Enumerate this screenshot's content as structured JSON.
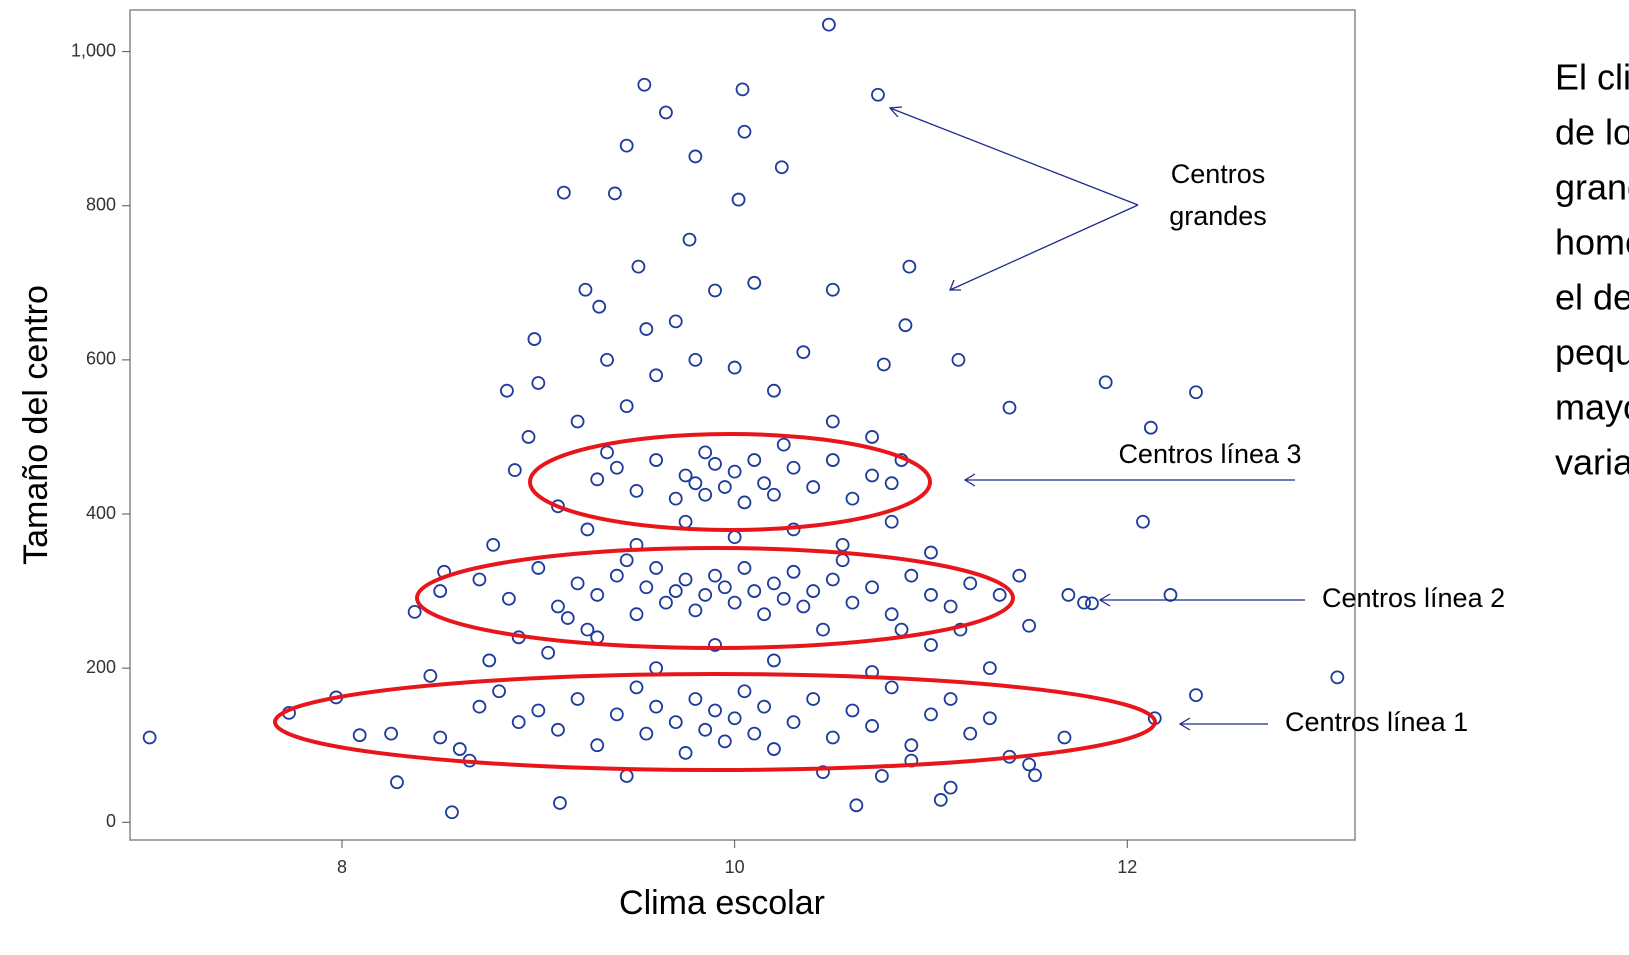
{
  "chart_data": {
    "type": "scatter",
    "x_label": "Clima escolar",
    "y_label": "Tamaño del centro",
    "color": "#1e3c9c",
    "xlim": [
      6.92,
      13.16
    ],
    "ylim": [
      -23,
      1054
    ],
    "xticks": [
      8,
      10,
      12
    ],
    "yticks": [
      0,
      200,
      400,
      600,
      800,
      {
        "value": 1000,
        "label": "1,000"
      }
    ],
    "annotations": [
      "Centros",
      "grandes",
      "Centros línea 3",
      "Centros línea 2",
      "Centros línea 1"
    ],
    "side_text": [
      "El clima",
      "de los c",
      "grandes",
      "homogé",
      "el de los",
      "pequeñ",
      "mayor",
      "variabili"
    ],
    "x": [
      7.02,
      10.48,
      10.73,
      9.54,
      10.04,
      13.07,
      12.35,
      12.08,
      11.89,
      12.12,
      11.4,
      11.14,
      10.89,
      10.24,
      10.05,
      9.13,
      9.39,
      9.65,
      9.77,
      8.28,
      8.56,
      9.11,
      10.62,
      11.05,
      11.53,
      11.68,
      11.82,
      12.22,
      12.35,
      12.14,
      7.73,
      7.97,
      8.09,
      8.37,
      8.52,
      8.77,
      8.84,
      8.88,
      8.98,
      9.24,
      9.31,
      9.51,
      9.45,
      9.8,
      10.02,
      10.5,
      10.76,
      10.87,
      9.3,
      9.4,
      9.5,
      9.6,
      9.7,
      9.75,
      9.8,
      9.85,
      9.9,
      9.95,
      10.0,
      10.05,
      10.1,
      10.15,
      10.2,
      10.3,
      10.4,
      10.5,
      10.6,
      10.7,
      10.8,
      9.1,
      10.85,
      9.35,
      10.25,
      9.85,
      9.2,
      9.45,
      9.6,
      9.8,
      10.0,
      10.2,
      10.35,
      10.5,
      10.7,
      9.55,
      9.7,
      9.9,
      10.1,
      9.35,
      9.0,
      8.95,
      9.25,
      9.5,
      9.75,
      10.0,
      10.3,
      10.55,
      10.8,
      11.0,
      9.05,
      9.3,
      9.6,
      9.9,
      10.2,
      10.45,
      10.7,
      11.0,
      11.3,
      8.75,
      11.15,
      8.9,
      8.5,
      8.7,
      8.85,
      9.0,
      9.1,
      9.2,
      9.3,
      9.4,
      9.5,
      9.55,
      9.6,
      9.65,
      9.7,
      9.75,
      9.8,
      9.85,
      9.9,
      9.95,
      10.0,
      10.05,
      10.1,
      10.15,
      10.2,
      10.25,
      10.3,
      10.35,
      10.4,
      10.5,
      10.6,
      10.7,
      10.8,
      10.9,
      11.0,
      11.1,
      11.2,
      11.35,
      11.5,
      11.45,
      11.7,
      11.78,
      9.15,
      9.45,
      10.55,
      10.85,
      9.25,
      8.5,
      8.6,
      8.7,
      8.8,
      8.9,
      9.0,
      9.1,
      9.2,
      9.3,
      9.4,
      9.5,
      9.55,
      9.6,
      9.7,
      9.75,
      9.8,
      9.85,
      9.9,
      9.95,
      10.0,
      10.05,
      10.1,
      10.15,
      10.2,
      10.3,
      10.4,
      10.5,
      10.6,
      10.7,
      10.8,
      10.9,
      11.0,
      11.1,
      11.2,
      11.3,
      11.4,
      11.5,
      9.45,
      10.45,
      10.75,
      11.1,
      8.25,
      8.45,
      8.65,
      10.9
    ],
    "values": [
      110,
      1035,
      944,
      957,
      951,
      188,
      558,
      390,
      571,
      512,
      538,
      600,
      721,
      850,
      896,
      817,
      816,
      921,
      756,
      52,
      13,
      25,
      22,
      29,
      61,
      110,
      284,
      295,
      165,
      135,
      142,
      162,
      113,
      273,
      325,
      360,
      560,
      457,
      627,
      691,
      669,
      721,
      878,
      864,
      808,
      691,
      594,
      645,
      445,
      460,
      430,
      470,
      420,
      450,
      440,
      425,
      465,
      435,
      455,
      415,
      470,
      440,
      425,
      460,
      435,
      470,
      420,
      450,
      440,
      410,
      470,
      480,
      490,
      480,
      520,
      540,
      580,
      600,
      590,
      560,
      610,
      520,
      500,
      640,
      650,
      690,
      700,
      600,
      570,
      500,
      380,
      360,
      390,
      370,
      380,
      360,
      390,
      350,
      220,
      240,
      200,
      230,
      210,
      250,
      195,
      230,
      200,
      210,
      250,
      240,
      300,
      315,
      290,
      330,
      280,
      310,
      295,
      320,
      270,
      305,
      330,
      285,
      300,
      315,
      275,
      295,
      320,
      305,
      285,
      330,
      300,
      270,
      310,
      290,
      325,
      280,
      300,
      315,
      285,
      305,
      270,
      320,
      295,
      280,
      310,
      295,
      255,
      320,
      295,
      285,
      265,
      340,
      340,
      250,
      250,
      110,
      95,
      150,
      170,
      130,
      145,
      120,
      160,
      100,
      140,
      175,
      115,
      150,
      130,
      90,
      160,
      120,
      145,
      105,
      135,
      170,
      115,
      150,
      95,
      130,
      160,
      110,
      145,
      125,
      175,
      100,
      140,
      160,
      115,
      135,
      85,
      75,
      60,
      65,
      60,
      45,
      115,
      190,
      80,
      80
    ]
  }
}
